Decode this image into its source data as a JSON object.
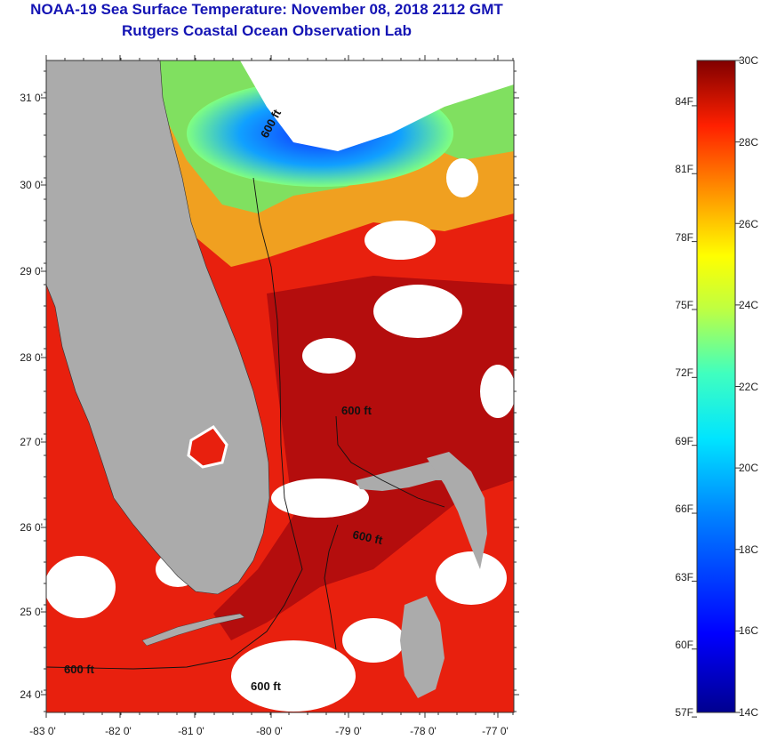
{
  "title": {
    "line1": "NOAA-19 Sea Surface Temperature:  November 08, 2018 2112 GMT",
    "line2": "Rutgers Coastal Ocean Observation Lab"
  },
  "axes": {
    "lat_labels": [
      "31 0'",
      "30 0'",
      "29 0'",
      "28 0'",
      "27 0'",
      "26 0'",
      "25 0'",
      "24 0'"
    ],
    "lon_labels": [
      "-83 0'",
      "-82 0'",
      "-81 0'",
      "-80 0'",
      "-79 0'",
      "-78 0'",
      "-77 0'"
    ]
  },
  "isobath_label": "600 ft",
  "isobath_labels": [
    "600 ft",
    "600 ft",
    "600 ft",
    "600 ft"
  ],
  "colorbar": {
    "celsius": [
      "30C",
      "28C",
      "26C",
      "24C",
      "22C",
      "20C",
      "18C",
      "16C",
      "14C"
    ],
    "fahrenheit": [
      "84F",
      "81F",
      "78F",
      "75F",
      "72F",
      "69F",
      "66F",
      "63F",
      "60F",
      "57F"
    ],
    "range_c": [
      14,
      30
    ]
  },
  "colors": {
    "title": "#1414b4",
    "land": "#ababab",
    "sea_warm": "#e8200e",
    "sea_dark": "#b40d0d",
    "cloud": "#ffffff"
  }
}
